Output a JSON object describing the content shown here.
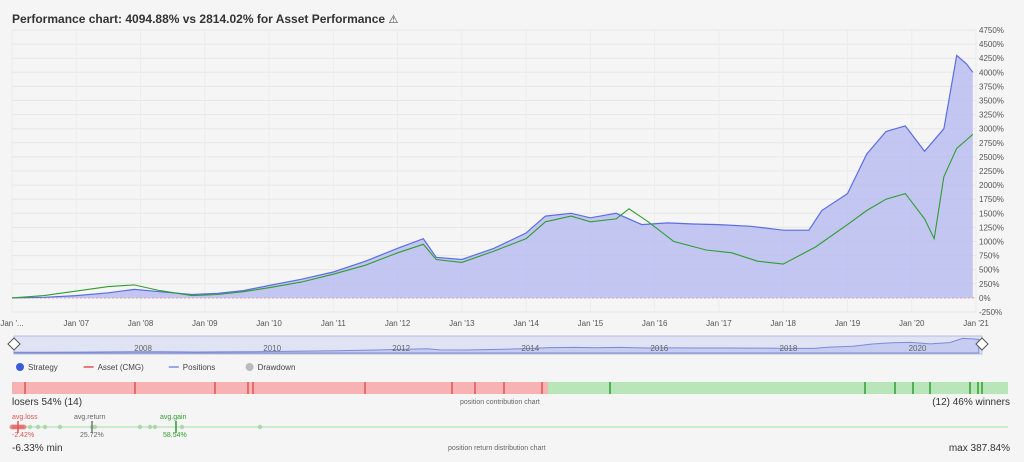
{
  "title": "Performance chart: 4094.88% vs 2814.02% for Asset Performance",
  "warn_icon": "⚠",
  "chart_data": {
    "type": "line",
    "title": "Performance chart: 4094.88% vs 2814.02% for Asset Performance",
    "x_labels": [
      "Jan '...",
      "Jan '07",
      "Jan '08",
      "Jan '09",
      "Jan '10",
      "Jan '11",
      "Jan '12",
      "Jan '13",
      "Jan '14",
      "Jan '15",
      "Jan '16",
      "Jan '17",
      "Jan '18",
      "Jan '19",
      "Jan '20",
      "Jan '21"
    ],
    "y_ticks": [
      "4750%",
      "4500%",
      "4250%",
      "4000%",
      "3750%",
      "3500%",
      "3250%",
      "3000%",
      "2750%",
      "2500%",
      "2250%",
      "2000%",
      "1750%",
      "1500%",
      "1250%",
      "1000%",
      "750%",
      "500%",
      "250%",
      "0%",
      "-250%"
    ],
    "ylim": [
      -250,
      4750
    ],
    "xlim": [
      2006.0,
      2021.0
    ],
    "series": [
      {
        "name": "Strategy",
        "color": "#5b6ee1",
        "fill": "#b8bdf0",
        "x": [
          2006.0,
          2006.5,
          2007.0,
          2007.5,
          2007.9,
          2008.3,
          2008.8,
          2009.2,
          2009.6,
          2010.0,
          2010.5,
          2011.0,
          2011.5,
          2012.0,
          2012.4,
          2012.6,
          2013.0,
          2013.5,
          2014.0,
          2014.3,
          2014.7,
          2015.0,
          2015.4,
          2015.8,
          2016.2,
          2016.6,
          2017.0,
          2017.5,
          2018.0,
          2018.4,
          2018.6,
          2019.0,
          2019.3,
          2019.6,
          2019.9,
          2020.2,
          2020.5,
          2020.7,
          2020.85,
          2020.95
        ],
        "values": [
          0,
          10,
          40,
          90,
          150,
          110,
          60,
          80,
          130,
          220,
          330,
          460,
          650,
          880,
          1050,
          720,
          680,
          880,
          1150,
          1450,
          1500,
          1420,
          1500,
          1300,
          1330,
          1310,
          1300,
          1270,
          1200,
          1200,
          1550,
          1850,
          2550,
          2950,
          3050,
          2600,
          3000,
          4300,
          4150,
          4000
        ]
      },
      {
        "name": "Asset (CMG)",
        "color": "#2e9e2e",
        "x": [
          2006.0,
          2006.5,
          2007.0,
          2007.5,
          2007.9,
          2008.3,
          2008.8,
          2009.2,
          2009.6,
          2010.0,
          2010.5,
          2011.0,
          2011.5,
          2012.0,
          2012.4,
          2012.6,
          2013.0,
          2013.5,
          2014.0,
          2014.3,
          2014.7,
          2015.0,
          2015.4,
          2015.6,
          2015.9,
          2016.3,
          2016.8,
          2017.2,
          2017.6,
          2018.0,
          2018.5,
          2019.0,
          2019.3,
          2019.6,
          2019.9,
          2020.2,
          2020.35,
          2020.5,
          2020.7,
          2020.85,
          2020.95
        ],
        "values": [
          0,
          40,
          120,
          200,
          230,
          130,
          40,
          60,
          110,
          180,
          280,
          420,
          580,
          800,
          950,
          680,
          630,
          830,
          1050,
          1350,
          1450,
          1350,
          1400,
          1580,
          1350,
          1000,
          850,
          800,
          650,
          600,
          900,
          1300,
          1550,
          1750,
          1850,
          1400,
          1050,
          2150,
          2650,
          2800,
          2900
        ]
      },
      {
        "name": "Positions",
        "color": "#8ea4e8",
        "values": []
      },
      {
        "name": "Drawdown",
        "color": "#cccccc",
        "values": []
      }
    ]
  },
  "navigator": {
    "labels": [
      "2008",
      "2010",
      "2012",
      "2014",
      "2016",
      "2018",
      "2020"
    ]
  },
  "legend": [
    {
      "label": "Strategy",
      "color": "#3b5bdb",
      "marker": "dot"
    },
    {
      "label": "Asset (CMG)",
      "color": "#e05555",
      "marker": "line"
    },
    {
      "label": "Positions",
      "color": "#7890e0",
      "marker": "line"
    },
    {
      "label": "Drawdown",
      "color": "#bbbbbb",
      "marker": "dot",
      "dim": true
    }
  ],
  "contribution": {
    "losers_label": "losers 54% (14)",
    "winners_label": "(12) 46% winners",
    "center_label": "position contribution chart",
    "loser_color": "#f7b3b3",
    "winner_color": "#b9e6b9"
  },
  "distribution": {
    "avg_loss_label": "avg.loss",
    "avg_loss_value": "-2.42%",
    "avg_return_label": "avg.return",
    "avg_return_value": "25.72%",
    "avg_gain_label": "avg.gain",
    "avg_gain_value": "58.54%",
    "min_label": "-6.33% min",
    "max_label": "max 387.84%",
    "center_label": "position return distribution chart"
  }
}
